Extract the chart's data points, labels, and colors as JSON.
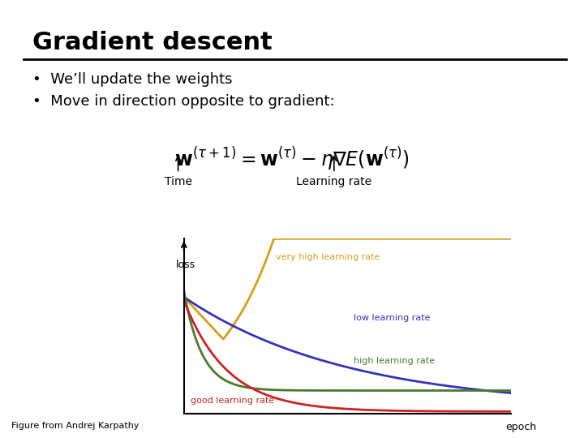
{
  "title": "Gradient descent",
  "bullet1": "We’ll update the weights",
  "bullet2": "Move in direction opposite to gradient:",
  "time_label": "Time",
  "lr_label": "Learning rate",
  "xlabel": "epoch",
  "ylabel": "loss",
  "footer": "Figure from Andrej Karpathy",
  "bg_color": "#ffffff",
  "title_color": "#000000",
  "curves": {
    "very_high": {
      "color": "#D4A017",
      "label": "very high learning rate"
    },
    "low": {
      "color": "#3333BB",
      "label": "low learning rate"
    },
    "high": {
      "color": "#4A7A30",
      "label": "high learning rate"
    },
    "good": {
      "color": "#CC2222",
      "label": "good learning rate"
    }
  }
}
